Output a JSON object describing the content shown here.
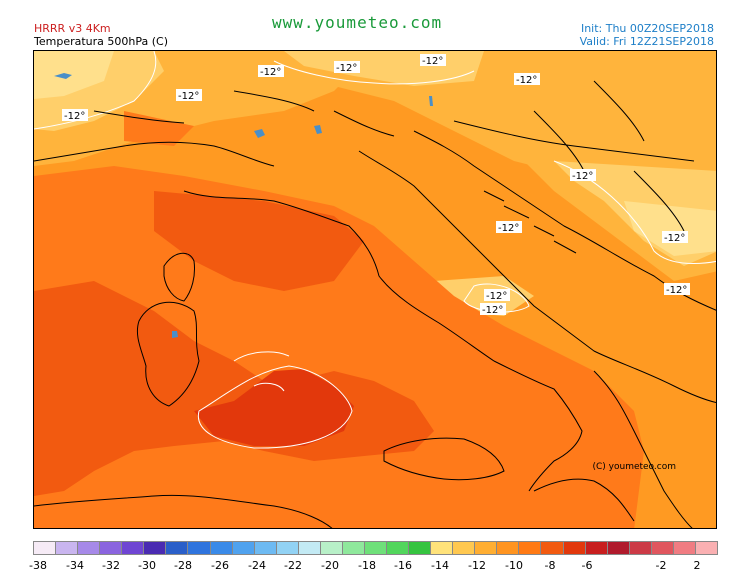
{
  "header": {
    "model": "HRRR v3 4Km",
    "parameter": "Temperatura 500hPa (C)",
    "site": "www.youmeteo.com",
    "init": "Init: Thu 00Z20SEP2018",
    "valid": "Valid: Fri  12Z21SEP2018"
  },
  "map": {
    "contour_label": "-12°",
    "copyright": "(C) youmeteo.com"
  },
  "legend": {
    "colors": [
      "#f6ebf6",
      "#c9b5ef",
      "#a689e8",
      "#8a64df",
      "#6f45d3",
      "#4a2bb2",
      "#2a5fc9",
      "#2f74de",
      "#3a8ae8",
      "#50a2ee",
      "#6ebaf2",
      "#92d2f4",
      "#c3eaf4",
      "#b8f0c8",
      "#8fe89c",
      "#6fe07a",
      "#52d65c",
      "#35c440",
      "#ffe27a",
      "#ffc850",
      "#ffae32",
      "#ff9420",
      "#ff7a14",
      "#f25a10",
      "#e2380c",
      "#c81e1e",
      "#b01a2c",
      "#cc3a46",
      "#e0565e",
      "#f07c82",
      "#fab0b2"
    ],
    "tick_labels": [
      "-38",
      "-34",
      "-32",
      "-30",
      "-28",
      "-26",
      "-24",
      "-22",
      "-20",
      "-18",
      "-16",
      "-14",
      "-12",
      "-10",
      "-8",
      "-6",
      "-2",
      "2"
    ]
  }
}
